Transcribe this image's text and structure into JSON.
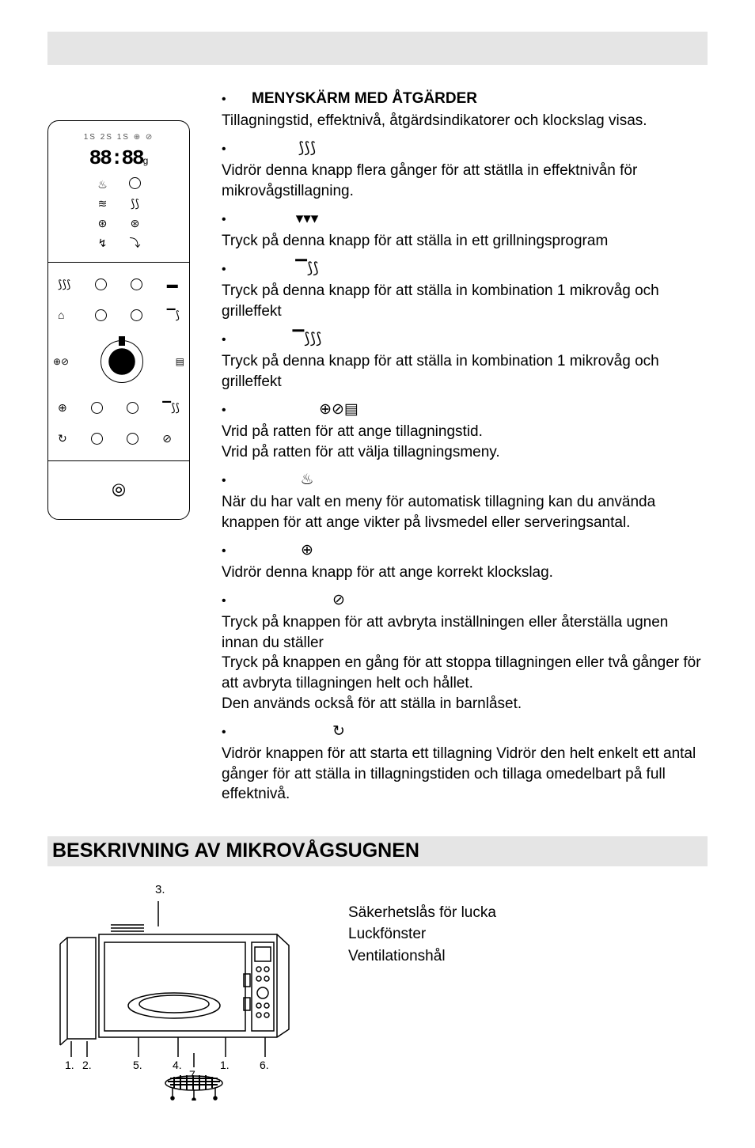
{
  "panel": {
    "display_top": "1S 2S 1S ⊕ ⊘",
    "display_digits": "88:88",
    "display_suffix": "g"
  },
  "menu": {
    "heading_label": "MENYSKÄRM MED ÅTGÄRDER",
    "heading_desc": "Tillagningstid, effektnivå, åtgärdsindikatorer och klockslag visas.",
    "items": [
      {
        "icon": "⟆⟆⟆",
        "desc": "Vidrör denna knapp flera gånger för att stätlla in effektnivån för mikrovågstillagning."
      },
      {
        "icon": "▾▾▾",
        "desc": "Tryck på denna knapp för att ställa in ett grillningsprogram"
      },
      {
        "icon": "▔⟆⟆",
        "desc": "Tryck på denna knapp för att ställa in kombination 1 mikrovåg och grilleffekt"
      },
      {
        "icon": "▔⟆⟆⟆",
        "desc": "Tryck på denna knapp för att ställa in kombination 1 mikrovåg och grilleffekt"
      },
      {
        "icon": "⊕⊘▤",
        "desc": "Vrid på ratten för att ange tillagningstid.\nVrid på ratten för att välja tillagningsmeny."
      },
      {
        "icon": "♨",
        "desc": "När du har valt en meny för automatisk tillagning kan du använda knappen för att ange vikter på livsmedel eller serveringsantal."
      },
      {
        "icon": "⊕",
        "desc": "Vidrör denna knapp för att ange korrekt klockslag."
      },
      {
        "icon": "⊘",
        "desc": "Tryck på knappen för att avbryta inställningen eller återställa ugnen innan du ställer\nTryck på knappen en gång för att stoppa tillagningen eller två gånger för att avbryta tillagningen helt och hållet.\nDen används också för att ställa in barnlåset."
      },
      {
        "icon": "↻",
        "desc": "Vidrör knappen för att starta ett tillagning               Vidrör den helt enkelt ett antal gånger för att ställa in tillagningstiden och tillaga omedelbart på full effektnivå."
      }
    ]
  },
  "section2": {
    "title": "BESKRIVNING AV MIKROVÅGSUGNEN",
    "legend": [
      "Säkerhetslås för lucka",
      "Luckfönster",
      "Ventilationshål"
    ],
    "diagram_labels": [
      "1.",
      "2.",
      "3.",
      "4.",
      "5.",
      "6.",
      "7."
    ]
  },
  "colors": {
    "band": "#e5e5e5",
    "text": "#000000",
    "bg": "#ffffff"
  }
}
